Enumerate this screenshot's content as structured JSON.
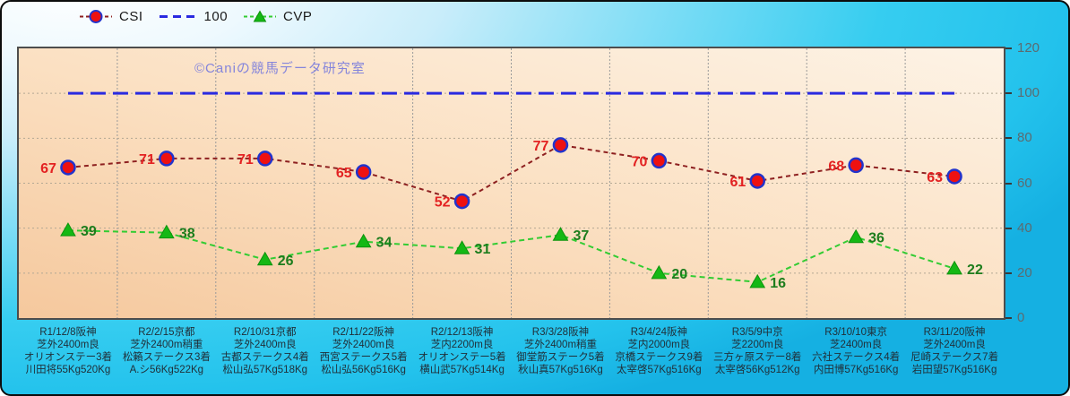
{
  "watermark": "©Caniの競馬データ研究室",
  "legend": {
    "items": [
      {
        "label": "CSI"
      },
      {
        "label": "100"
      },
      {
        "label": "CVP"
      }
    ]
  },
  "colors": {
    "background_top_left": "#ffffff",
    "background_cyan": "#23c2ec",
    "plot_fill_light": "#fdf3e6",
    "plot_fill_dark": "#f5c89d",
    "plot_border": "#4d4d4d",
    "grid": "#9a9a9a",
    "axis_text": "#5c6b70",
    "x_label_text": "#20303a",
    "watermark_text": "#8585db"
  },
  "chart_data": {
    "type": "line",
    "title": "",
    "xlabel": "",
    "ylabel": "",
    "ylim": [
      0,
      120
    ],
    "yticks": [
      0,
      20,
      40,
      60,
      80,
      100,
      120
    ],
    "grid": true,
    "legend_position": "top-left",
    "categories": [
      [
        "R1/12/8阪神",
        "芝外2400m良",
        "オリオンステー3着",
        "川田将55Kg520Kg"
      ],
      [
        "R2/2/15京都",
        "芝外2400m稍重",
        "松籟ステークス3着",
        "A.シ56Kg522Kg"
      ],
      [
        "R2/10/31京都",
        "芝外2400m良",
        "古都ステークス4着",
        "松山弘57Kg518Kg"
      ],
      [
        "R2/11/22阪神",
        "芝外2400m良",
        "西宮ステークス5着",
        "松山弘56Kg516Kg"
      ],
      [
        "R2/12/13阪神",
        "芝内2200m良",
        "オリオンステー5着",
        "横山武57Kg514Kg"
      ],
      [
        "R3/3/28阪神",
        "芝外2400m稍重",
        "御堂筋ステーク5着",
        "秋山真57Kg516Kg"
      ],
      [
        "R3/4/24阪神",
        "芝内2000m良",
        "京橋ステークス9着",
        "太宰啓57Kg516Kg"
      ],
      [
        "R3/5/9中京",
        "芝2200m良",
        "三方ヶ原ステー8着",
        "太宰啓56Kg512Kg"
      ],
      [
        "R3/10/10東京",
        "芝2400m良",
        "六社ステークス4着",
        "内田博57Kg516Kg"
      ],
      [
        "R3/11/20阪神",
        "芝外2400m良",
        "尼崎ステークス7着",
        "岩田望57Kg516Kg"
      ]
    ],
    "series": [
      {
        "name": "CSI",
        "values": [
          67,
          71,
          71,
          65,
          52,
          77,
          70,
          61,
          68,
          63
        ],
        "line_color": "#8e2020",
        "dash": "5 4",
        "width": 2,
        "marker": "circle",
        "marker_fill": "#ee1111",
        "marker_stroke": "#2233cc",
        "labels": true,
        "label_color": "#e32222",
        "label_side": "left"
      },
      {
        "name": "100",
        "values": [
          100,
          100,
          100,
          100,
          100,
          100,
          100,
          100,
          100,
          100
        ],
        "line_color": "#2a2ae0",
        "dash": "17 8",
        "width": 3,
        "marker": "none",
        "labels": false
      },
      {
        "name": "CVP",
        "values": [
          39,
          38,
          26,
          34,
          31,
          37,
          20,
          16,
          36,
          22
        ],
        "line_color": "#33cc33",
        "dash": "6 4",
        "width": 2,
        "marker": "triangle",
        "marker_fill": "#15b815",
        "marker_stroke": "#0d930d",
        "labels": true,
        "label_color": "#1d7d1d",
        "label_side": "right"
      }
    ]
  }
}
